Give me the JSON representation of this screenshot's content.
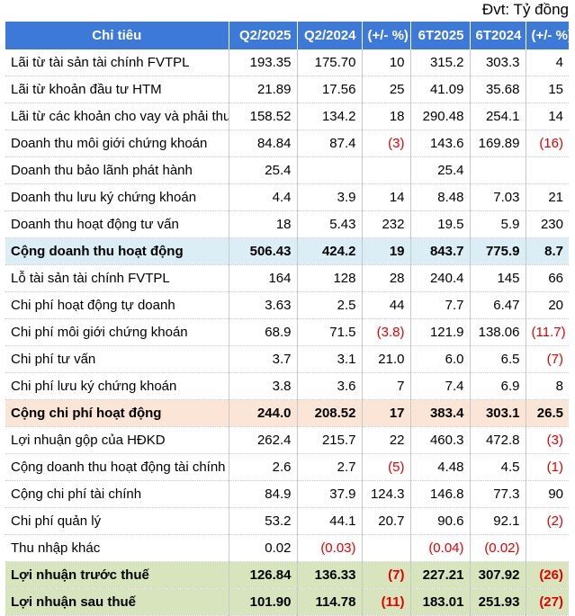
{
  "unit_label": "Đvt: Tỷ đồng",
  "headers": [
    "Chỉ tiêu",
    "Q2/2025",
    "Q2/2024",
    "(+/- %)",
    "6T2025",
    "6T2024",
    "(+/- %)"
  ],
  "rows": [
    {
      "style": "",
      "cells": [
        "Lãi từ tài sản tài chính FVTPL",
        "193.35",
        "175.70",
        "10",
        "315.2",
        "303.3",
        "4"
      ]
    },
    {
      "style": "",
      "cells": [
        "Lãi từ khoản đầu tư HTM",
        "21.89",
        "17.56",
        "25",
        "41.09",
        "35.68",
        "15"
      ]
    },
    {
      "style": "",
      "cells": [
        "Lãi từ các khoản cho vay và phải thu",
        "158.52",
        "134.2",
        "18",
        "290.48",
        "254.1",
        "14"
      ]
    },
    {
      "style": "",
      "cells": [
        "Doanh thu môi giới chứng khoán",
        "84.84",
        "87.4",
        "(3)",
        "143.6",
        "169.89",
        "(16)"
      ]
    },
    {
      "style": "",
      "cells": [
        "Doanh thu bảo lãnh phát hành",
        "25.4",
        "",
        "",
        "25.4",
        "",
        ""
      ]
    },
    {
      "style": "",
      "cells": [
        "Doanh thu lưu ký chứng khoán",
        "4.4",
        "3.9",
        "14",
        "8.48",
        "7.03",
        "21"
      ]
    },
    {
      "style": "",
      "cells": [
        "Doanh thu hoạt động tư vấn",
        "18",
        "5.43",
        "232",
        "19.5",
        "5.9",
        "230"
      ]
    },
    {
      "style": "bold hl-blue",
      "cells": [
        "Cộng doanh thu hoạt động",
        "506.43",
        "424.2",
        "19",
        "843.7",
        "775.9",
        "8.7"
      ]
    },
    {
      "style": "",
      "cells": [
        "Lỗ tài sản tài chính FVTPL",
        "164",
        "128",
        "28",
        "240.4",
        "145",
        "66"
      ]
    },
    {
      "style": "",
      "cells": [
        "Chi phí hoạt động tự doanh",
        "3.63",
        "2.5",
        "44",
        "7.7",
        "6.47",
        "20"
      ]
    },
    {
      "style": "",
      "cells": [
        "Chi phí môi giới chứng khoán",
        "68.9",
        "71.5",
        "(3.8)",
        "121.9",
        "138.06",
        "(11.7)"
      ]
    },
    {
      "style": "",
      "cells": [
        "Chi phí tư vấn",
        "3.7",
        "3.1",
        "21.0",
        "6.0",
        "6.5",
        "(7)"
      ]
    },
    {
      "style": "",
      "cells": [
        "Chi phí lưu ký chứng khoán",
        "3.8",
        "3.6",
        "7",
        "7.4",
        "6.9",
        "8"
      ]
    },
    {
      "style": "bold hl-peach",
      "cells": [
        "Cộng chi phí hoạt động",
        "244.0",
        "208.52",
        "17",
        "383.4",
        "303.1",
        "26.5"
      ]
    },
    {
      "style": "",
      "cells": [
        "Lợi nhuận gộp của HĐKD",
        "262.4",
        "215.7",
        "22",
        "460.3",
        "472.8",
        "(3)"
      ]
    },
    {
      "style": "",
      "cells": [
        "Cộng doanh thu hoạt động tài chính",
        "2.6",
        "2.7",
        "(5)",
        "4.48",
        "4.5",
        "(1)"
      ]
    },
    {
      "style": "",
      "cells": [
        "Cộng chi phí tài chính",
        "84.9",
        "37.9",
        "124.3",
        "146.8",
        "77.3",
        "90"
      ]
    },
    {
      "style": "",
      "cells": [
        "Chi phí quản lý",
        "53.2",
        "44.1",
        "20.7",
        "90.6",
        "92.1",
        "(2)"
      ]
    },
    {
      "style": "",
      "cells": [
        "Thu nhập khác",
        "0.02",
        "(0.03)",
        "",
        "(0.04)",
        "(0.02)",
        ""
      ]
    },
    {
      "style": "bold hl-green",
      "cells": [
        "Lợi nhuận trước thuế",
        "126.84",
        "136.33",
        "(7)",
        "227.21",
        "307.92",
        "(26)"
      ]
    },
    {
      "style": "bold hl-green",
      "cells": [
        "Lợi nhuận sau thuế",
        "101.90",
        "114.78",
        "(11)",
        "183.01",
        "251.93",
        "(27)"
      ]
    }
  ],
  "colors": {
    "header_bg": "#3d79d8",
    "blue_row": "#dbeef6",
    "peach_row": "#fbe5d6",
    "green_row": "#d8e4bc",
    "negative": "#e00000"
  }
}
